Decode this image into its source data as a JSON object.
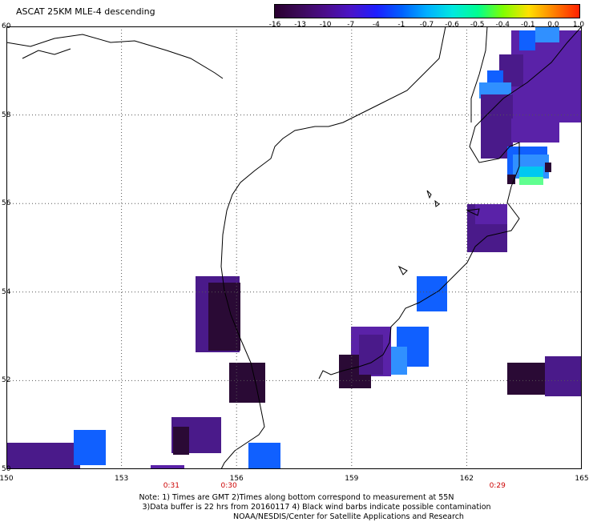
{
  "title": "ASCAT 25KM MLE-4 descending",
  "colorbar": {
    "labels": [
      "-16",
      "-13",
      "-10",
      "-7",
      "-4",
      "-1",
      "-0.7",
      "-0.6",
      "-0.5",
      "-0.4",
      "-0.1",
      "0.0",
      "1.0"
    ],
    "colors": [
      "#2a0030",
      "#3c0a5a",
      "#4b0d8c",
      "#4a14c8",
      "#1e1eff",
      "#0060ff",
      "#00b0ff",
      "#00e8e0",
      "#00ff90",
      "#80ff00",
      "#ffe000",
      "#ff8000",
      "#ff2000"
    ]
  },
  "map": {
    "lat_labels": [
      "60",
      "58",
      "56",
      "54",
      "52",
      "50"
    ],
    "lon_labels": [
      "150",
      "153",
      "156",
      "159",
      "162",
      "165"
    ],
    "lat_range": [
      50,
      60
    ],
    "lon_range": [
      150,
      165
    ],
    "cell_colors": {
      "dark": "#2a0a35",
      "purple": "#4a1a8a",
      "violet": "#5a22a8",
      "blue": "#1060ff",
      "lightblue": "#3090ff",
      "cyan": "#00c8f0",
      "green": "#60ff90"
    }
  },
  "times": [
    {
      "label": "0:31",
      "lon": 154.3
    },
    {
      "label": "0:30",
      "lon": 155.8
    },
    {
      "label": "0:29",
      "lon": 162.8
    }
  ],
  "notes": [
    "Note: 1) Times are GMT 2)Times along bottom correspond to measurement at 55N",
    "3)Data buffer is 22 hrs from 20160117 4) Black wind barbs indicate possible contamination",
    "NOAA/NESDIS/Center for Satellite Applications and Research"
  ]
}
